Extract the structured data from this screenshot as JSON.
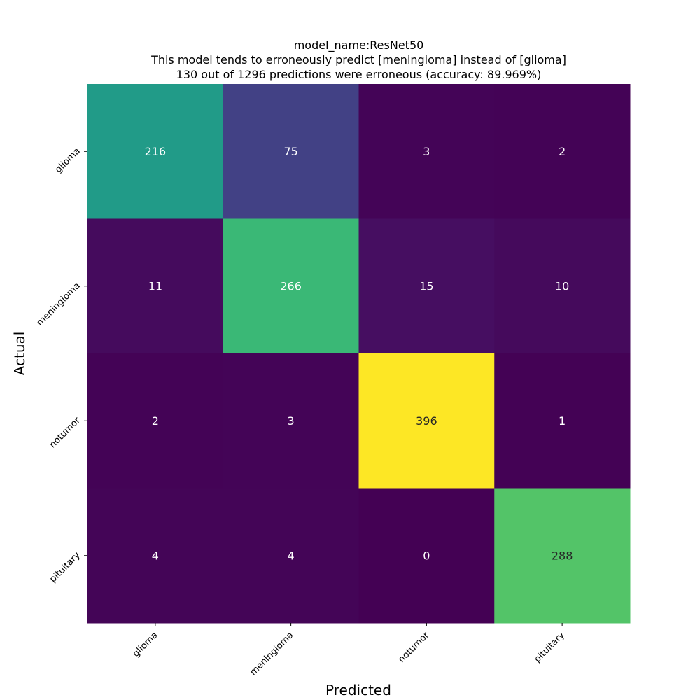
{
  "chart_data": {
    "type": "heatmap",
    "title": [
      "model_name:ResNet50",
      "This model tends to erroneously predict [meningioma] instead of [glioma]",
      "130 out of 1296 predictions were erroneous (accuracy: 89.969%)"
    ],
    "xlabel": "Predicted",
    "ylabel": "Actual",
    "x_categories": [
      "glioma",
      "meningioma",
      "notumor",
      "pituitary"
    ],
    "y_categories": [
      "glioma",
      "meningioma",
      "notumor",
      "pituitary"
    ],
    "values": [
      [
        216,
        75,
        3,
        2
      ],
      [
        11,
        266,
        15,
        10
      ],
      [
        2,
        3,
        396,
        1
      ],
      [
        4,
        4,
        0,
        288
      ]
    ],
    "colormap": "viridis",
    "colorbar": false,
    "grid": false
  }
}
